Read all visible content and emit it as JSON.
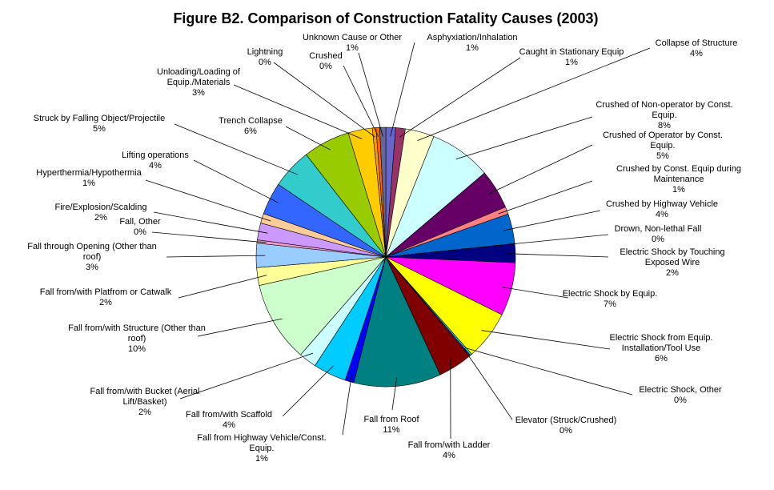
{
  "chart_data": {
    "type": "pie",
    "title": "Figure B2.  Comparison of Construction Fatality Causes (2003)",
    "slices": [
      {
        "label": [
          "Asphyxiation/Inhalation"
        ],
        "value": 1.2,
        "pct": "1%",
        "color": "#6666cc"
      },
      {
        "label": [
          "Caught in Stationary Equip"
        ],
        "value": 1.2,
        "pct": "1%",
        "color": "#993366"
      },
      {
        "label": [
          "Collapse of Structure"
        ],
        "value": 3.6,
        "pct": "4%",
        "color": "#ffffcc"
      },
      {
        "label": [
          "Crushed of Non-operator by Const.",
          "Equip."
        ],
        "value": 7.7,
        "pct": "8%",
        "color": "#ccffff"
      },
      {
        "label": [
          "Crushed of Operator by Const.",
          "Equip."
        ],
        "value": 4.9,
        "pct": "5%",
        "color": "#660066"
      },
      {
        "label": [
          "Crushed by Const. Equip during",
          "Maintenance"
        ],
        "value": 0.9,
        "pct": "1%",
        "color": "#ff8080"
      },
      {
        "label": [
          "Crushed by Highway Vehicle"
        ],
        "value": 3.7,
        "pct": "4%",
        "color": "#0066cc"
      },
      {
        "label": [
          "Drown, Non-lethal Fall"
        ],
        "value": 0.05,
        "pct": "0%",
        "color": "#ccccff"
      },
      {
        "label": [
          "Electric Shock by Touching",
          "Exposed Wire"
        ],
        "value": 2.3,
        "pct": "2%",
        "color": "#000080"
      },
      {
        "label": [
          "Electric Shock by Equip."
        ],
        "value": 6.6,
        "pct": "7%",
        "color": "#ff00ff"
      },
      {
        "label": [
          "Electric Shock from Equip.",
          "Installation/Tool Use"
        ],
        "value": 6.1,
        "pct": "6%",
        "color": "#ffff00"
      },
      {
        "label": [
          "Electric Shock, Other"
        ],
        "value": 0.2,
        "pct": "0%",
        "color": "#00ffff"
      },
      {
        "label": [
          "Elevator (Struck/Crushed)"
        ],
        "value": 0.2,
        "pct": "0%",
        "color": "#800080"
      },
      {
        "label": [
          "Fall from/with Ladder"
        ],
        "value": 4.2,
        "pct": "4%",
        "color": "#800000"
      },
      {
        "label": [
          "Fall from Roof"
        ],
        "value": 10.8,
        "pct": "11%",
        "color": "#008080"
      },
      {
        "label": [
          "Fall from Highway Vehicle/Const.",
          "Equip."
        ],
        "value": 1.1,
        "pct": "1%",
        "color": "#0000ff"
      },
      {
        "label": [
          "Fall from/with Scaffold"
        ],
        "value": 4.1,
        "pct": "4%",
        "color": "#00ccff"
      },
      {
        "label": [
          "Fall from/with Bucket (Aerial",
          "Lift/Basket)"
        ],
        "value": 2.2,
        "pct": "2%",
        "color": "#ccffff"
      },
      {
        "label": [
          "Fall from/with Structure (Other than",
          "roof)"
        ],
        "value": 10.0,
        "pct": "10%",
        "color": "#ccffcc"
      },
      {
        "label": [
          "Fall from/with Platfrom or Catwalk"
        ],
        "value": 2.2,
        "pct": "2%",
        "color": "#ffff99"
      },
      {
        "label": [
          "Fall through Opening (Other than",
          "roof)"
        ],
        "value": 3.0,
        "pct": "3%",
        "color": "#99ccff"
      },
      {
        "label": [
          "Fall, Other"
        ],
        "value": 0.4,
        "pct": "0%",
        "color": "#ff99cc"
      },
      {
        "label": [
          "Fire/Explosion/Scalding"
        ],
        "value": 2.1,
        "pct": "2%",
        "color": "#cc99ff"
      },
      {
        "label": [
          "Hyperthermia/Hypothermia"
        ],
        "value": 1.2,
        "pct": "1%",
        "color": "#ffcc99"
      },
      {
        "label": [
          "Lifting operations"
        ],
        "value": 4.0,
        "pct": "4%",
        "color": "#3366ff"
      },
      {
        "label": [
          "Struck by Falling Object/Projectile"
        ],
        "value": 5.0,
        "pct": "5%",
        "color": "#33cccc"
      },
      {
        "label": [
          "Trench Collapse"
        ],
        "value": 5.8,
        "pct": "6%",
        "color": "#99cc00"
      },
      {
        "label": [
          "Unloading/Loading of",
          "Equip./Materials"
        ],
        "value": 3.0,
        "pct": "3%",
        "color": "#ffcc00"
      },
      {
        "label": [
          "Lightning"
        ],
        "value": 0.45,
        "pct": "0%",
        "color": "#ff9900"
      },
      {
        "label": [
          "Crushed"
        ],
        "value": 0.45,
        "pct": "0%",
        "color": "#ff6600"
      },
      {
        "label": [
          "Unknown Cause or Other"
        ],
        "value": 0.75,
        "pct": "1%",
        "color": "#666699"
      }
    ]
  }
}
